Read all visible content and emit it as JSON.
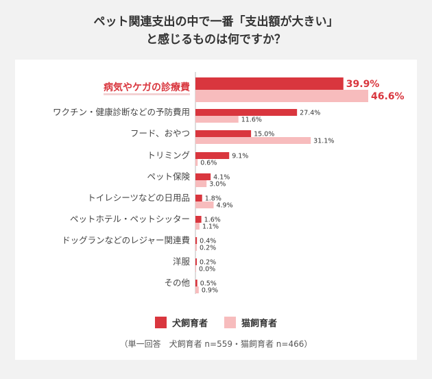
{
  "title_line1": "ペット関連支出の中で一番「支出額が大きい」",
  "title_line2": "と感じるものは何ですか？",
  "colors": {
    "dog": "#d9363e",
    "cat": "#f7bcbd",
    "highlight": "#d9363e"
  },
  "chart_data": {
    "type": "bar",
    "orientation": "horizontal",
    "categories": [
      "病気やケガの診療費",
      "ワクチン・健康診断などの予防費用",
      "フード、おやつ",
      "トリミング",
      "ペット保険",
      "トイレシーツなどの日用品",
      "ペットホテル・ペットシッター",
      "ドッグランなどのレジャー関連費",
      "洋服",
      "その他"
    ],
    "series": [
      {
        "name": "犬飼育者",
        "values": [
          39.9,
          27.4,
          15.0,
          9.1,
          4.1,
          1.8,
          1.6,
          0.4,
          0.2,
          0.5
        ]
      },
      {
        "name": "猫飼育者",
        "values": [
          46.6,
          11.6,
          31.1,
          0.6,
          3.0,
          4.9,
          1.1,
          0.2,
          0.0,
          0.9
        ]
      }
    ],
    "value_labels": [
      [
        "39.9%",
        "27.4%",
        "15.0%",
        "9.1%",
        "4.1%",
        "1.8%",
        "1.6%",
        "0.4%",
        "0.2%",
        "0.5%"
      ],
      [
        "46.6%",
        "11.6%",
        "31.1%",
        "0.6%",
        "3.0%",
        "4.9%",
        "1.1%",
        "0.2%",
        "0.0%",
        "0.9%"
      ]
    ],
    "highlight_index": 0,
    "xlim": [
      0,
      46.6
    ],
    "grid": false,
    "legend_position": "bottom"
  },
  "legend": {
    "dog": "犬飼育者",
    "cat": "猫飼育者"
  },
  "note": "（単一回答　犬飼育者 n=559・猫飼育者 n=466）"
}
